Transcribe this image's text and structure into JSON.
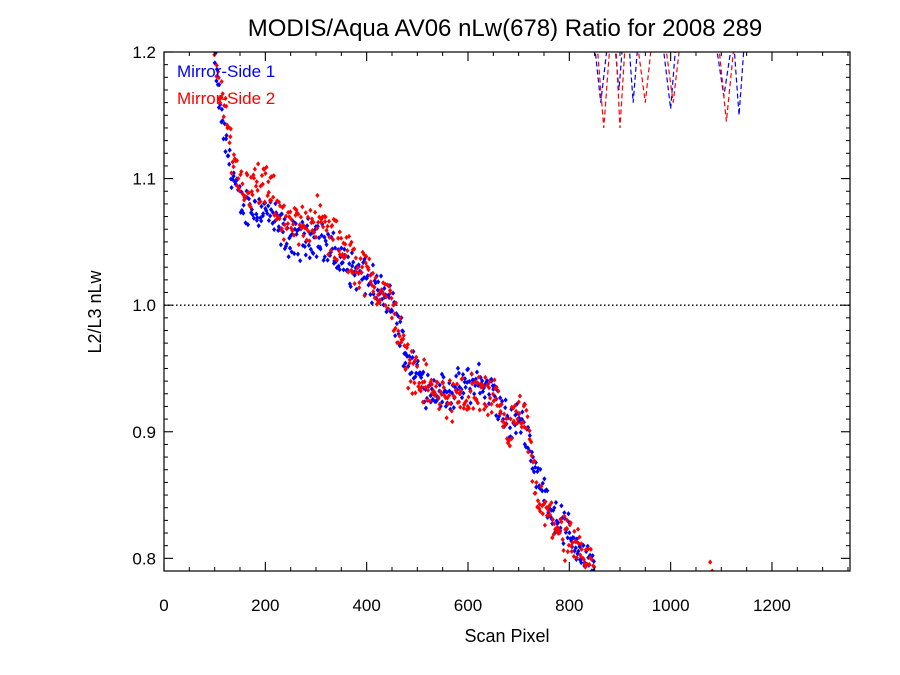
{
  "chart_data": {
    "type": "scatter",
    "title": "MODIS/Aqua AV06 nLw(678) Ratio for 2008 289",
    "xlabel": "Scan Pixel",
    "ylabel": "L2/L3 nLw",
    "xlim": [
      0,
      1354
    ],
    "ylim": [
      0.79,
      1.2
    ],
    "xticks": [
      0,
      200,
      400,
      600,
      800,
      1000,
      1200
    ],
    "xtick_labels": [
      "0",
      "200",
      "400",
      "600",
      "800",
      "1000",
      "1200"
    ],
    "yticks": [
      0.8,
      0.9,
      1.0,
      1.1,
      1.2
    ],
    "ytick_labels": [
      "0.8",
      "0.9",
      "1.0",
      "1.1",
      "1.2"
    ],
    "reference_line": {
      "y": 1.0,
      "style": "dotted"
    },
    "legend_placement": "top-left",
    "series": [
      {
        "name": "Mirror-Side 1",
        "color": "#0000ff",
        "marker": "diamond",
        "trend": [
          [
            100,
            1.19
          ],
          [
            120,
            1.13
          ],
          [
            150,
            1.08
          ],
          [
            200,
            1.075
          ],
          [
            250,
            1.05
          ],
          [
            300,
            1.055
          ],
          [
            350,
            1.035
          ],
          [
            400,
            1.02
          ],
          [
            450,
            1.0
          ],
          [
            480,
            0.96
          ],
          [
            520,
            0.935
          ],
          [
            560,
            0.93
          ],
          [
            620,
            0.94
          ],
          [
            650,
            0.93
          ],
          [
            680,
            0.905
          ],
          [
            710,
            0.91
          ],
          [
            740,
            0.86
          ],
          [
            770,
            0.835
          ],
          [
            800,
            0.82
          ],
          [
            830,
            0.8
          ],
          [
            850,
            0.79
          ]
        ],
        "scatter_amplitude": 0.012,
        "high_segments": [
          [
            [
              850,
              1.205
            ],
            [
              862,
              1.16
            ],
            [
              875,
              1.205
            ]
          ],
          [
            [
              890,
              1.205
            ],
            [
              898,
              1.17
            ],
            [
              905,
              1.205
            ]
          ],
          [
            [
              918,
              1.205
            ],
            [
              926,
              1.16
            ],
            [
              935,
              1.205
            ]
          ],
          [
            [
              985,
              1.205
            ],
            [
              1000,
              1.155
            ],
            [
              1010,
              1.205
            ]
          ],
          [
            [
              1090,
              1.205
            ],
            [
              1105,
              1.165
            ],
            [
              1120,
              1.205
            ]
          ],
          [
            [
              1125,
              1.205
            ],
            [
              1135,
              1.15
            ],
            [
              1145,
              1.205
            ]
          ]
        ]
      },
      {
        "name": "Mirror-Side 2",
        "color": "#ff0000",
        "marker": "diamond",
        "trend": [
          [
            100,
            1.2
          ],
          [
            120,
            1.15
          ],
          [
            150,
            1.095
          ],
          [
            200,
            1.095
          ],
          [
            250,
            1.06
          ],
          [
            300,
            1.07
          ],
          [
            350,
            1.045
          ],
          [
            400,
            1.025
          ],
          [
            450,
            1.0
          ],
          [
            480,
            0.955
          ],
          [
            520,
            0.935
          ],
          [
            560,
            0.925
          ],
          [
            620,
            0.93
          ],
          [
            650,
            0.925
          ],
          [
            680,
            0.9
          ],
          [
            710,
            0.915
          ],
          [
            740,
            0.84
          ],
          [
            770,
            0.83
          ],
          [
            800,
            0.81
          ],
          [
            830,
            0.8
          ],
          [
            850,
            0.79
          ]
        ],
        "scatter_amplitude": 0.014,
        "isolated_points": [
          [
            1078,
            0.797
          ],
          [
            1082,
            0.79
          ]
        ],
        "high_segments": [
          [
            [
              855,
              1.205
            ],
            [
              868,
              1.14
            ],
            [
              880,
              1.205
            ]
          ],
          [
            [
              892,
              1.205
            ],
            [
              900,
              1.14
            ],
            [
              910,
              1.205
            ]
          ],
          [
            [
              935,
              1.205
            ],
            [
              950,
              1.16
            ],
            [
              962,
              1.205
            ]
          ],
          [
            [
              990,
              1.205
            ],
            [
              1005,
              1.16
            ],
            [
              1018,
              1.205
            ]
          ],
          [
            [
              1095,
              1.205
            ],
            [
              1110,
              1.145
            ],
            [
              1125,
              1.205
            ]
          ]
        ]
      }
    ]
  }
}
